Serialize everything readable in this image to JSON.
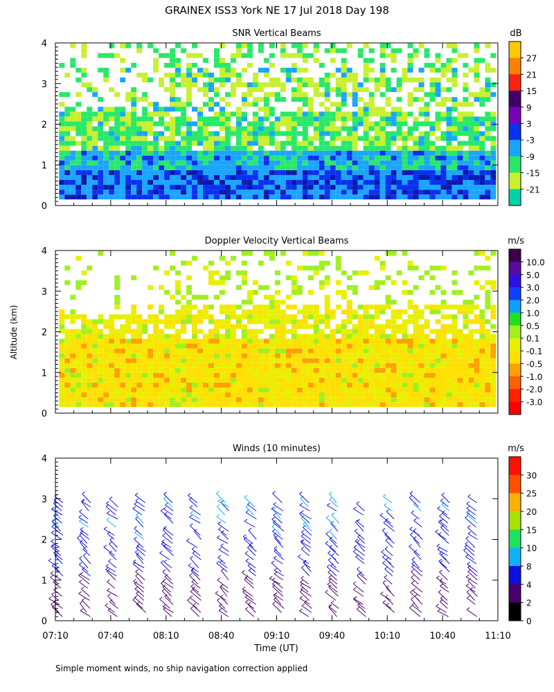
{
  "figure": {
    "title": "GRAINEX ISS3 York NE  17 Jul 2018 Day 198",
    "ylabel": "Altitude (km)",
    "xlabel": "Time (UT)",
    "footnote": "Simple moment winds, no ship navigation correction applied"
  },
  "chart_data": [
    {
      "type": "heatmap",
      "title": "SNR Vertical Beams",
      "unit": "dB",
      "x_ticks": [
        "07:10",
        "07:40",
        "08:10",
        "08:40",
        "09:10",
        "09:40",
        "10:10",
        "10:40",
        "11:10"
      ],
      "y_ticks": [
        "0",
        "1",
        "2",
        "3",
        "4"
      ],
      "xlim": [
        "07:10",
        "11:10"
      ],
      "ylim": [
        0,
        4
      ],
      "colorbar": {
        "labels": [
          "27",
          "21",
          "15",
          "9",
          "3",
          "-3",
          "-9",
          "-15",
          "-21"
        ],
        "colors": [
          "#ffc800",
          "#ff7f00",
          "#ff2010",
          "#44006a",
          "#7a00b8",
          "#0a30f0",
          "#1aa5ff",
          "#28e86a",
          "#c8f030",
          "#00d2a8"
        ]
      }
    },
    {
      "type": "heatmap",
      "title": "Doppler Velocity Vertical Beams",
      "unit": "m/s",
      "x_ticks": [
        "07:10",
        "07:40",
        "08:10",
        "08:40",
        "09:10",
        "09:40",
        "10:10",
        "10:40",
        "11:10"
      ],
      "y_ticks": [
        "0",
        "1",
        "2",
        "3",
        "4"
      ],
      "xlim": [
        "07:10",
        "11:10"
      ],
      "ylim": [
        0,
        4
      ],
      "colorbar": {
        "labels": [
          "10.0",
          "5.0",
          "3.0",
          "2.0",
          "1.0",
          "0.5",
          "0.1",
          "-0.1",
          "-0.5",
          "-1.0",
          "-2.0",
          "-3.0"
        ],
        "colors": [
          "#3a0048",
          "#5a0aa0",
          "#3010e0",
          "#1040ff",
          "#10a0ff",
          "#20e020",
          "#a0f020",
          "#e8f000",
          "#ffe000",
          "#ffa000",
          "#ff6000",
          "#ff2000",
          "#ff0000"
        ]
      }
    },
    {
      "type": "barbs",
      "title": "Winds (10 minutes)",
      "unit": "m/s",
      "x_ticks": [
        "07:10",
        "07:40",
        "08:10",
        "08:40",
        "09:10",
        "09:40",
        "10:10",
        "10:40",
        "11:10"
      ],
      "y_ticks": [
        "0",
        "1",
        "2",
        "3",
        "4"
      ],
      "xlim": [
        "07:10",
        "11:10"
      ],
      "ylim": [
        0,
        4
      ],
      "colorbar": {
        "labels": [
          "30",
          "25",
          "20",
          "15",
          "10",
          "8",
          "4",
          "2",
          "0"
        ],
        "colors": [
          "#ff1000",
          "#ff5000",
          "#ffb000",
          "#a8e000",
          "#20e060",
          "#10b0ff",
          "#1010e0",
          "#4a006a",
          "#000000"
        ]
      }
    }
  ]
}
